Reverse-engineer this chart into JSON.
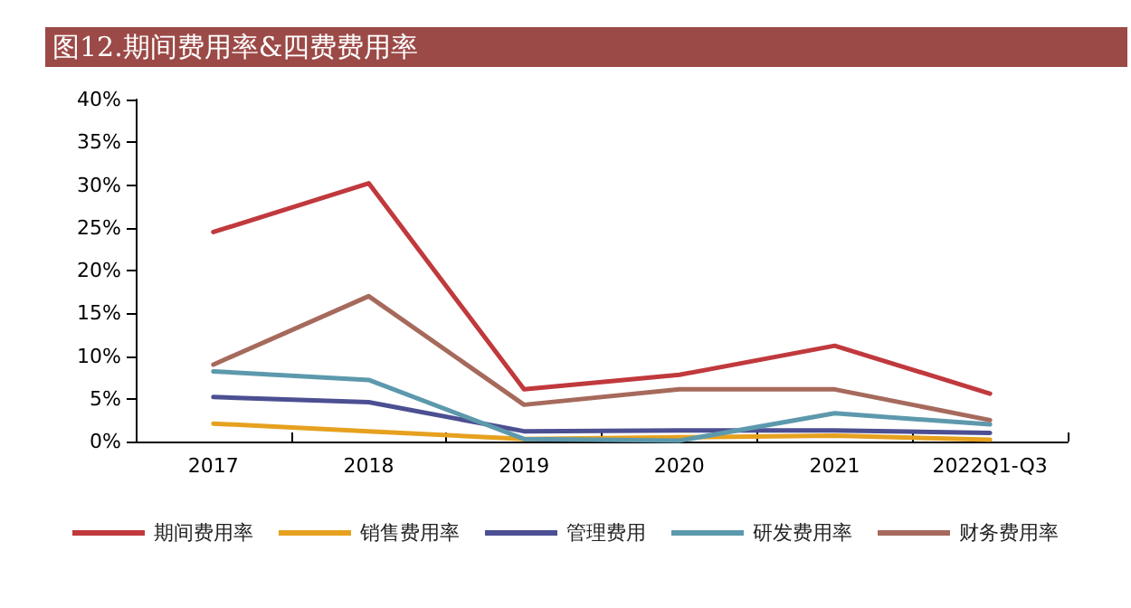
{
  "chart_data": {
    "type": "line",
    "title": "图12.期间费用率&四费费用率",
    "categories": [
      "2017",
      "2018",
      "2019",
      "2020",
      "2021",
      "2022Q1-Q3"
    ],
    "series": [
      {
        "name": "期间费用率",
        "color": "#c0393d",
        "values": [
          24.5,
          30.2,
          6.1,
          7.8,
          11.2,
          5.6
        ]
      },
      {
        "name": "销售费用率",
        "color": "#e6a11f",
        "values": [
          2.1,
          1.2,
          0.3,
          0.5,
          0.7,
          0.2
        ]
      },
      {
        "name": "管理费用",
        "color": "#4c4f92",
        "values": [
          5.2,
          4.6,
          1.2,
          1.3,
          1.3,
          1.0
        ]
      },
      {
        "name": "研发费用率",
        "color": "#5d99ad",
        "values": [
          8.2,
          7.2,
          0.3,
          0.1,
          3.3,
          2.0
        ]
      },
      {
        "name": "财务费用率",
        "color": "#a66a5c",
        "values": [
          9.0,
          17.0,
          4.3,
          6.1,
          6.1,
          2.5
        ]
      }
    ],
    "ylim": [
      0,
      40
    ],
    "yticks": [
      {
        "value": 0,
        "label": "0%"
      },
      {
        "value": 5,
        "label": "5%"
      },
      {
        "value": 10,
        "label": "10%"
      },
      {
        "value": 15,
        "label": "15%"
      },
      {
        "value": 20,
        "label": "20%"
      },
      {
        "value": 25,
        "label": "25%"
      },
      {
        "value": 30,
        "label": "30%"
      },
      {
        "value": 35,
        "label": "35%"
      },
      {
        "value": 40,
        "label": "40%"
      }
    ],
    "grid": false,
    "legend": "bottom",
    "marker": "none",
    "line_style": "solid"
  }
}
